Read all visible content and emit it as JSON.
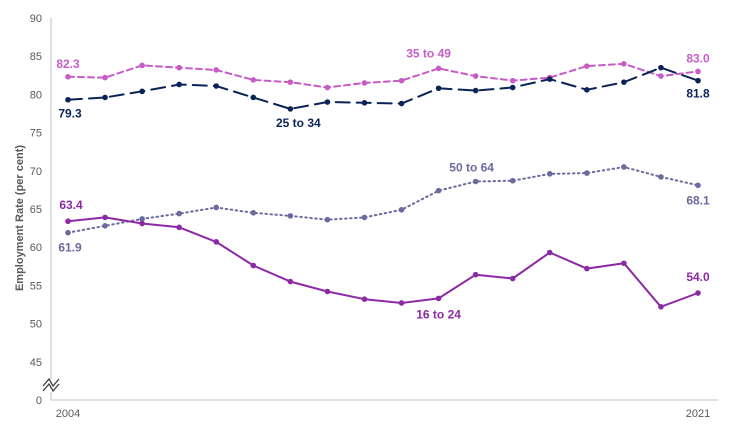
{
  "chart_data": {
    "type": "line",
    "title": "",
    "xlabel": "",
    "ylabel": "Employment Rate (per cent)",
    "x": [
      2004,
      2005,
      2006,
      2007,
      2008,
      2009,
      2010,
      2011,
      2012,
      2013,
      2014,
      2015,
      2016,
      2017,
      2018,
      2019,
      2020,
      2021
    ],
    "x_tick_labels": [
      "2004",
      "2021"
    ],
    "ylim": [
      40,
      90
    ],
    "y_ticks": [
      "0",
      "45",
      "50",
      "55",
      "60",
      "65",
      "70",
      "75",
      "80",
      "85",
      "90"
    ],
    "axis_break": true,
    "grid": false,
    "legend": "none",
    "series": [
      {
        "name": "35 to 49",
        "color": "#c75cc9",
        "style": "dashed",
        "values": [
          82.3,
          82.2,
          83.8,
          83.5,
          83.2,
          81.9,
          81.6,
          80.9,
          81.5,
          81.8,
          83.4,
          82.4,
          81.8,
          82.2,
          83.7,
          84.0,
          82.4,
          83.0
        ]
      },
      {
        "name": "25 to 34",
        "color": "#0b2457",
        "style": "longdash",
        "values": [
          79.3,
          79.6,
          80.4,
          81.3,
          81.1,
          79.6,
          78.1,
          79.0,
          78.9,
          78.8,
          80.8,
          80.5,
          80.9,
          82.0,
          80.6,
          81.6,
          83.5,
          81.8
        ]
      },
      {
        "name": "50 to 64",
        "color": "#6a6a9e",
        "style": "dotted",
        "values": [
          61.9,
          62.8,
          63.7,
          64.4,
          65.2,
          64.5,
          64.1,
          63.6,
          63.9,
          64.9,
          67.4,
          68.6,
          68.7,
          69.6,
          69.7,
          70.5,
          69.2,
          68.1
        ]
      },
      {
        "name": "16 to 24",
        "color": "#8c2aa6",
        "style": "solid",
        "values": [
          63.4,
          63.9,
          63.1,
          62.6,
          60.7,
          57.6,
          55.5,
          54.2,
          53.2,
          52.7,
          53.3,
          56.4,
          55.9,
          59.3,
          57.2,
          57.9,
          52.2,
          54.0
        ]
      }
    ],
    "annotations": [
      {
        "series": "35 to 49",
        "text": "82.3",
        "kind": "start"
      },
      {
        "series": "35 to 49",
        "text": "83.0",
        "kind": "end"
      },
      {
        "series": "35 to 49",
        "text": "35 to 49",
        "kind": "name"
      },
      {
        "series": "25 to 34",
        "text": "79.3",
        "kind": "start"
      },
      {
        "series": "25 to 34",
        "text": "81.8",
        "kind": "end"
      },
      {
        "series": "25 to 34",
        "text": "25 to 34",
        "kind": "name"
      },
      {
        "series": "50 to 64",
        "text": "61.9",
        "kind": "start"
      },
      {
        "series": "50 to 64",
        "text": "68.1",
        "kind": "end"
      },
      {
        "series": "50 to 64",
        "text": "50 to 64",
        "kind": "name"
      },
      {
        "series": "16 to 24",
        "text": "63.4",
        "kind": "start"
      },
      {
        "series": "16 to 24",
        "text": "54.0",
        "kind": "end"
      },
      {
        "series": "16 to 24",
        "text": "16 to 24",
        "kind": "name"
      }
    ]
  }
}
